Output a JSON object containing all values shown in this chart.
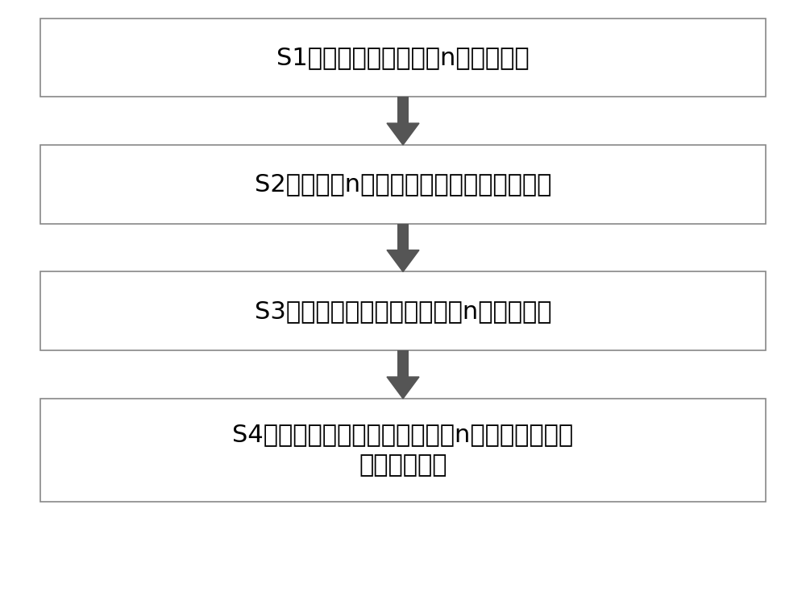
{
  "boxes": [
    {
      "text": "S1、在衬底上生长第一n型氮化镓层",
      "lines": 1
    },
    {
      "text": "S2、在第一n型氮化镓层上生长多量子阱层",
      "lines": 1
    },
    {
      "text": "S3、在多量子阱层上生长第二n型氮化镓层",
      "lines": 1
    },
    {
      "text": "S4、化学腐蚀多量子阱层及第二n型氮化镓层，得\n到量子点结构",
      "lines": 2
    }
  ],
  "box_color": "#ffffff",
  "box_edge_color": "#888888",
  "arrow_color": "#555555",
  "text_color": "#000000",
  "background_color": "#ffffff",
  "font_size": 22,
  "fig_width": 10.0,
  "fig_height": 7.5
}
